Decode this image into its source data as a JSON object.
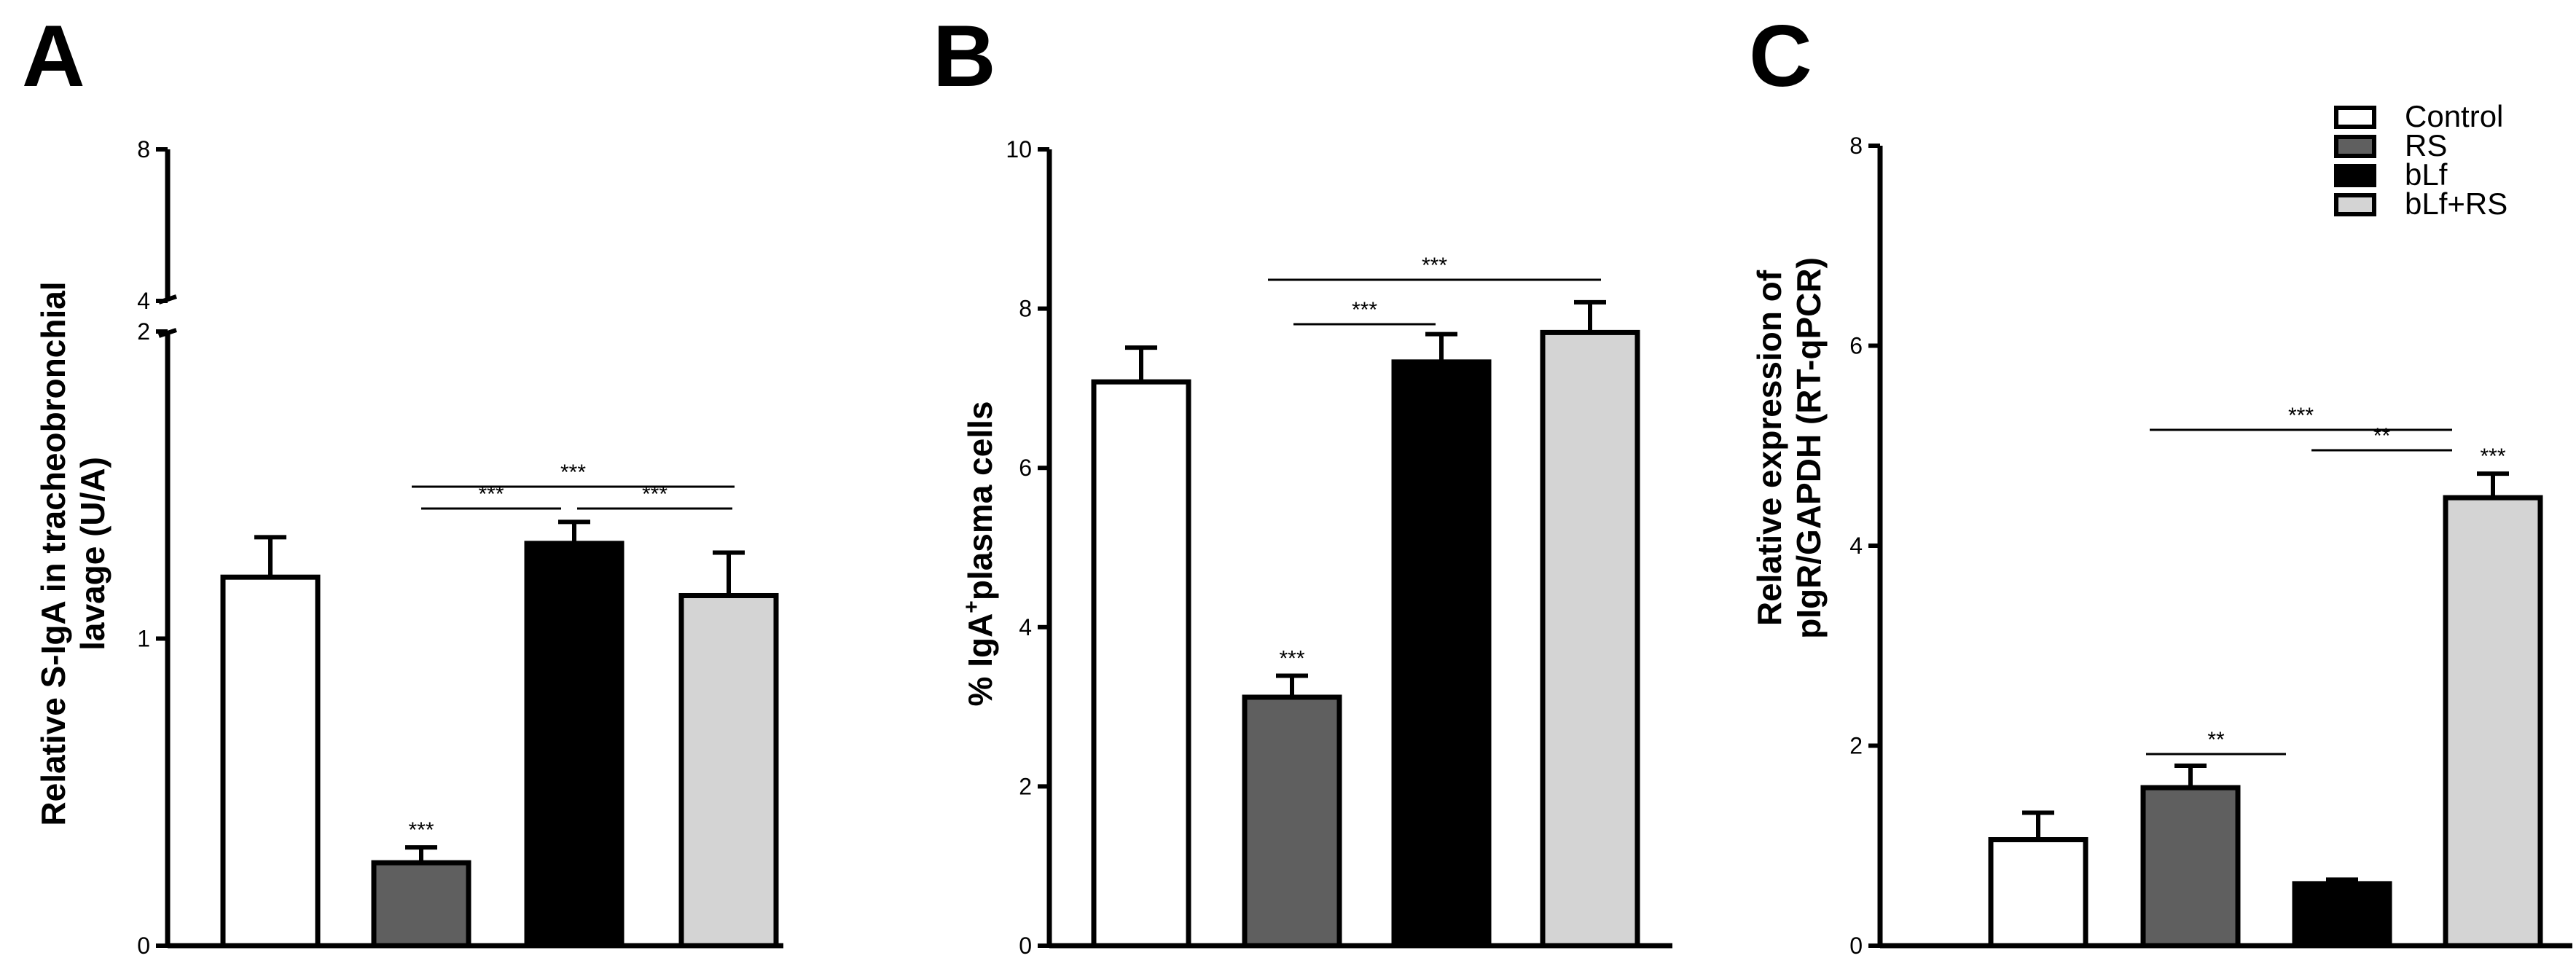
{
  "legend": [
    {
      "label": "Control",
      "color": "#ffffff"
    },
    {
      "label": "RS",
      "color": "#5f5f5f"
    },
    {
      "label": "bLf",
      "color": "#000000"
    },
    {
      "label": "bLf+RS",
      "color": "#d4d4d4"
    }
  ],
  "chart_data": [
    {
      "type": "bar",
      "panel": "A",
      "ylabel": "Relative S-IgA in tracheobronchial lavage (U/A)",
      "ylabel_lines": [
        "Relative S-IgA in tracheobronchial",
        "lavage (U/A)"
      ],
      "axis_break": true,
      "ylim_lower": [
        0,
        2
      ],
      "ylim_upper": [
        4,
        8
      ],
      "yticks_lower": [
        "0",
        "1",
        "2"
      ],
      "yticks_upper": [
        "4",
        "8"
      ],
      "categories": [
        "Control",
        "RS",
        "bLf",
        "bLf+RS"
      ],
      "values": [
        1.2,
        0.27,
        1.31,
        1.14
      ],
      "errors": [
        0.13,
        0.05,
        0.07,
        0.14
      ],
      "bar_annotations": [
        {
          "bar": 1,
          "text": "***"
        }
      ],
      "comparisons": [
        {
          "from": 1,
          "to": 3,
          "text": "***"
        },
        {
          "from": 1,
          "to": 2,
          "text": "***"
        },
        {
          "from": 2,
          "to": 3,
          "text": "***"
        }
      ]
    },
    {
      "type": "bar",
      "panel": "B",
      "ylabel_parts": [
        "% IgA",
        "+",
        "plasma cells"
      ],
      "ylim": [
        0,
        10
      ],
      "yticks": [
        "0",
        "2",
        "4",
        "6",
        "8",
        "10"
      ],
      "categories": [
        "Control",
        "RS",
        "bLf",
        "bLf+RS"
      ],
      "values": [
        7.08,
        3.12,
        7.33,
        7.7
      ],
      "errors": [
        0.43,
        0.27,
        0.35,
        0.38
      ],
      "bar_annotations": [
        {
          "bar": 1,
          "text": "***"
        }
      ],
      "comparisons": [
        {
          "from": 1,
          "to": 3,
          "text": "***"
        },
        {
          "from": 1,
          "to": 2,
          "text": "***"
        }
      ]
    },
    {
      "type": "bar",
      "panel": "C",
      "ylabel_lines": [
        "Relative expression of",
        "pIgR/GAPDH (RT-qPCR)"
      ],
      "ylim": [
        0,
        8
      ],
      "yticks": [
        "0",
        "2",
        "4",
        "6",
        "8"
      ],
      "categories": [
        "Control",
        "RS",
        "bLf",
        "bLf+RS"
      ],
      "values": [
        1.06,
        1.58,
        0.62,
        4.48
      ],
      "errors": [
        0.27,
        0.22,
        0.04,
        0.24
      ],
      "bar_annotations": [
        {
          "bar": 3,
          "text": "***"
        }
      ],
      "comparisons": [
        {
          "from": 1,
          "to": 3,
          "text": "***"
        },
        {
          "from": 2,
          "to": 3,
          "text": "**"
        },
        {
          "from": 1,
          "to": 2,
          "text": "**"
        }
      ]
    }
  ]
}
